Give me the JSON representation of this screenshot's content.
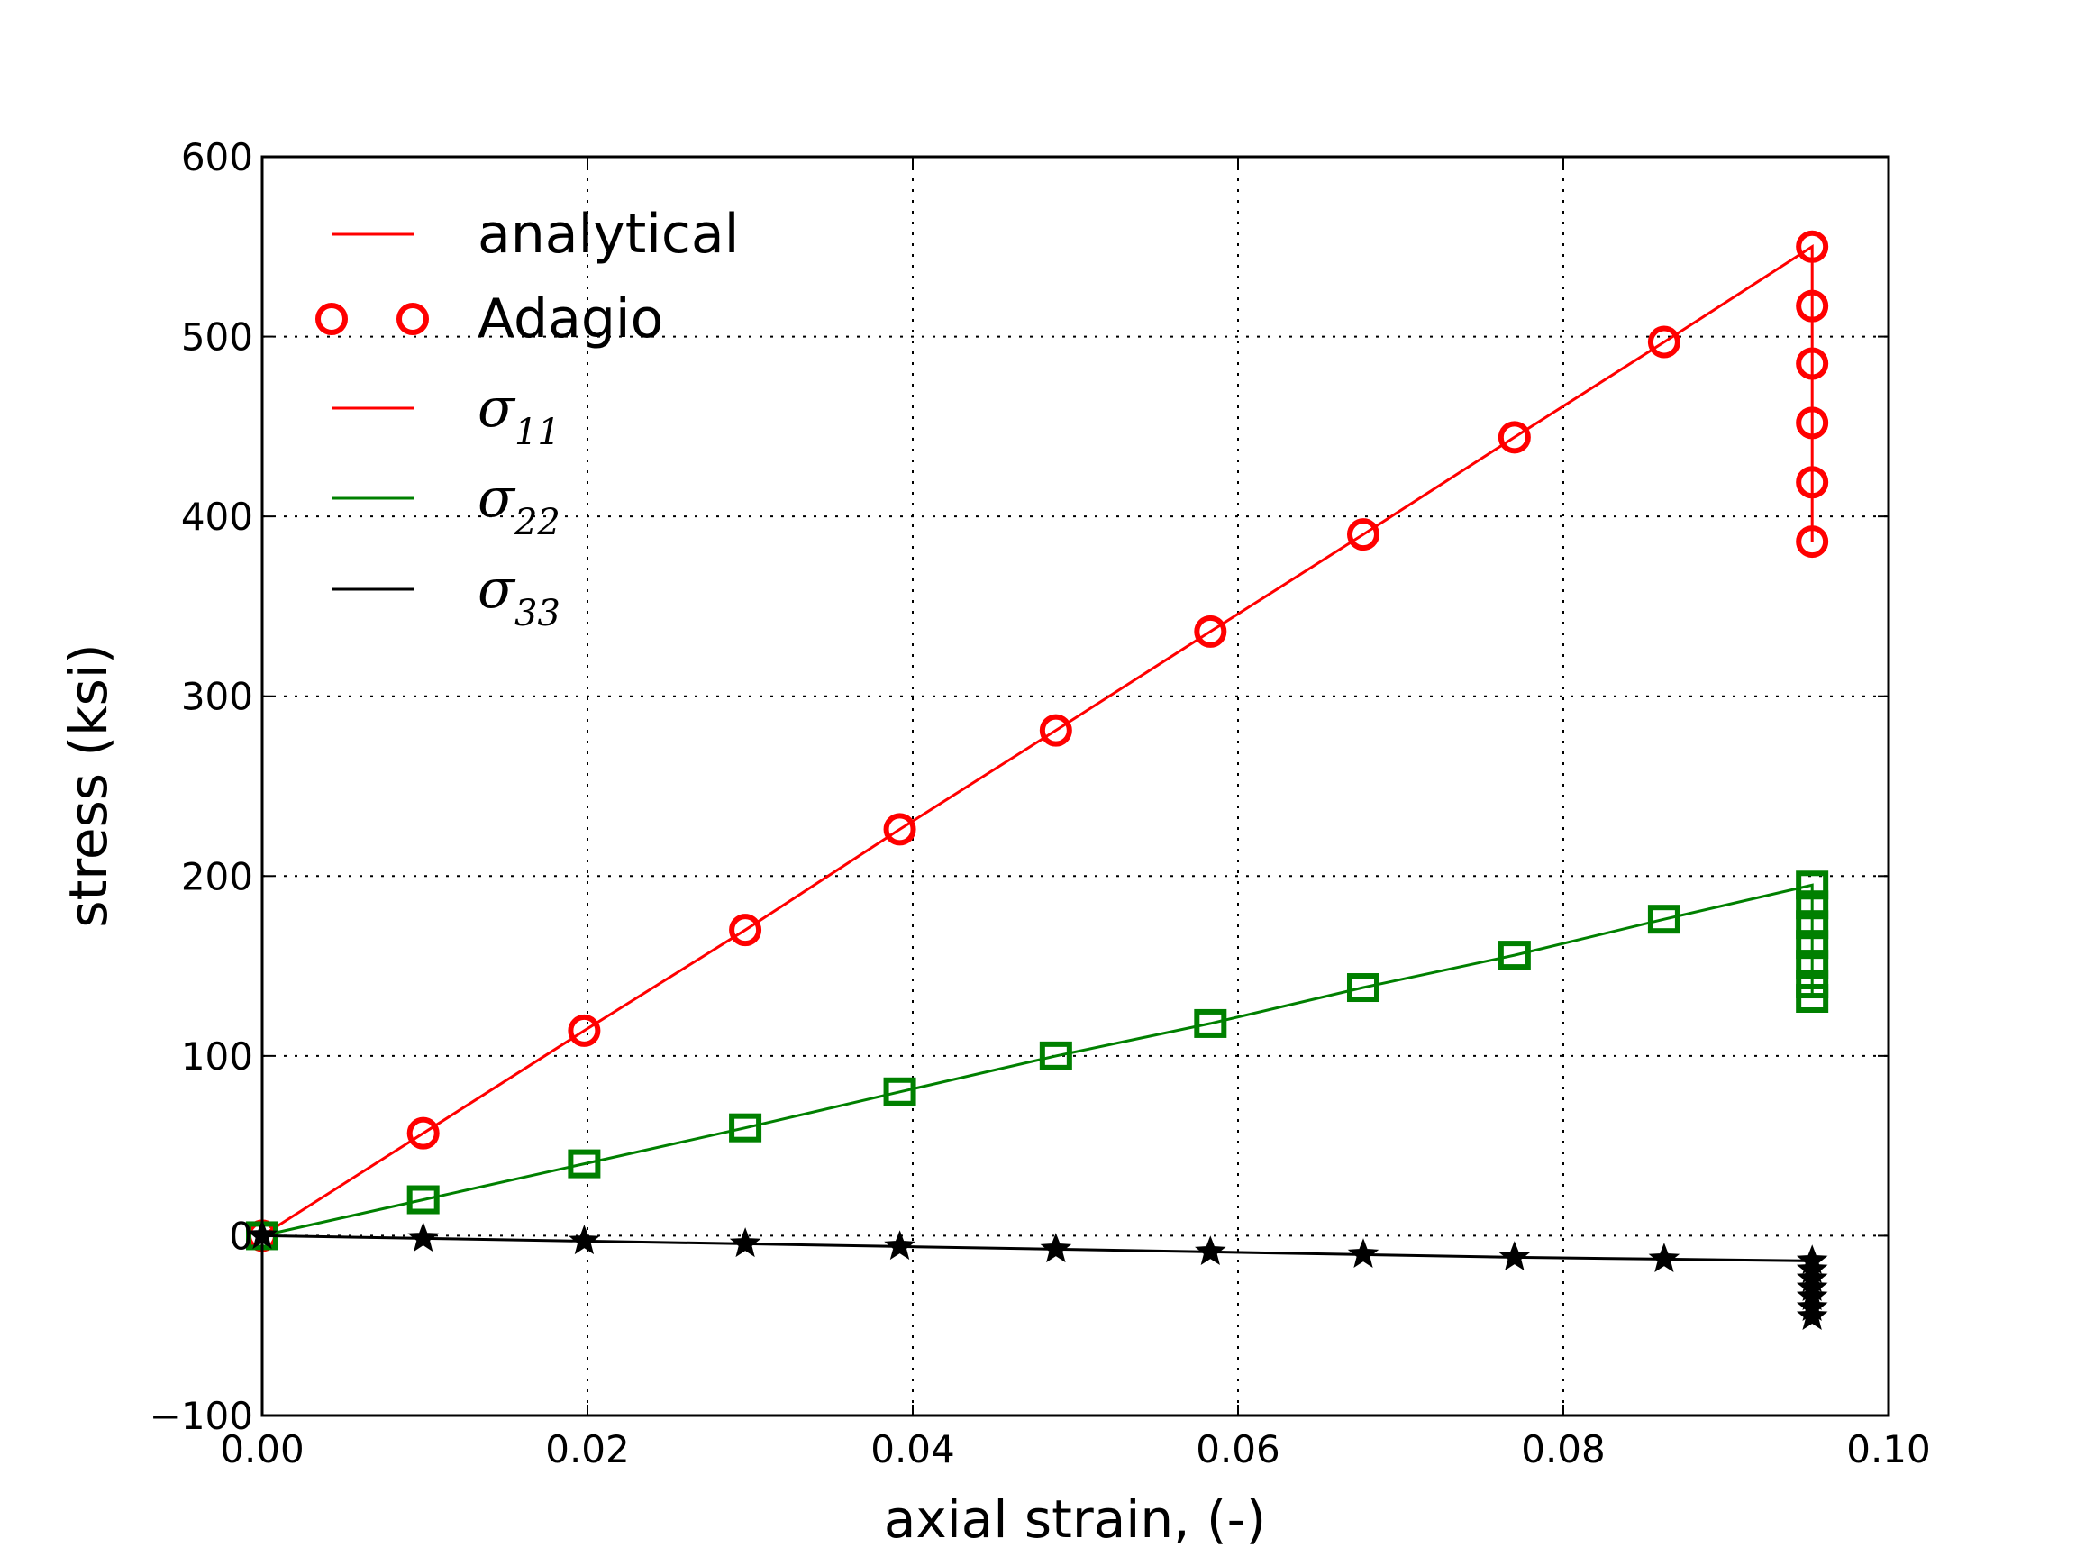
{
  "chart_data": {
    "type": "line",
    "title": "",
    "xlabel": "axial strain, (-)",
    "ylabel": "stress (ksi)",
    "xlim": [
      0.0,
      0.1
    ],
    "ylim": [
      -100,
      600
    ],
    "grid": true,
    "legend_placement": "top-left",
    "x_ticks": [
      "0.00",
      "0.02",
      "0.04",
      "0.06",
      "0.08",
      "0.10"
    ],
    "y_ticks": [
      "−100",
      "0",
      "100",
      "200",
      "300",
      "400",
      "500",
      "600"
    ],
    "legend": [
      {
        "label": "analytical",
        "style": "line",
        "color": "#ff0000"
      },
      {
        "label": "Adagio",
        "style": "circle",
        "color": "#ff0000"
      },
      {
        "label": "σ",
        "sub": "11",
        "style": "line",
        "color": "#ff0000"
      },
      {
        "label": "σ",
        "sub": "22",
        "style": "line",
        "color": "#008000"
      },
      {
        "label": "σ",
        "sub": "33",
        "style": "line",
        "color": "#000000"
      }
    ],
    "series": [
      {
        "name": "sigma_11",
        "color": "#ff0000",
        "marker": "circle",
        "x": [
          0.0,
          0.0099,
          0.0198,
          0.0297,
          0.0392,
          0.0488,
          0.0583,
          0.0677,
          0.077,
          0.0862,
          0.0953,
          0.0953,
          0.0953,
          0.0953,
          0.0953,
          0.0953
        ],
        "y": [
          0,
          57,
          114,
          170,
          226,
          281,
          336,
          390,
          444,
          497,
          550,
          517,
          485,
          452,
          419,
          386
        ]
      },
      {
        "name": "sigma_22",
        "color": "#008000",
        "marker": "square",
        "x": [
          0.0,
          0.0099,
          0.0198,
          0.0297,
          0.0392,
          0.0488,
          0.0583,
          0.0677,
          0.077,
          0.0862,
          0.0953,
          0.0953,
          0.0953,
          0.0953,
          0.0953,
          0.0953,
          0.0953
        ],
        "y": [
          0,
          20,
          40,
          60,
          80,
          100,
          118,
          138,
          156,
          176,
          195,
          184,
          173,
          162,
          151,
          140,
          132
        ]
      },
      {
        "name": "sigma_33",
        "color": "#000000",
        "marker": "star",
        "x": [
          0.0,
          0.0099,
          0.0198,
          0.0297,
          0.0392,
          0.0488,
          0.0583,
          0.0677,
          0.077,
          0.0862,
          0.0953,
          0.0953,
          0.0953,
          0.0953,
          0.0953,
          0.0953,
          0.0953
        ],
        "y": [
          0,
          -1.5,
          -3,
          -4.5,
          -6,
          -7.5,
          -9,
          -10.5,
          -12,
          -13,
          -14,
          -19,
          -24,
          -29,
          -34,
          -40,
          -45
        ]
      }
    ]
  }
}
